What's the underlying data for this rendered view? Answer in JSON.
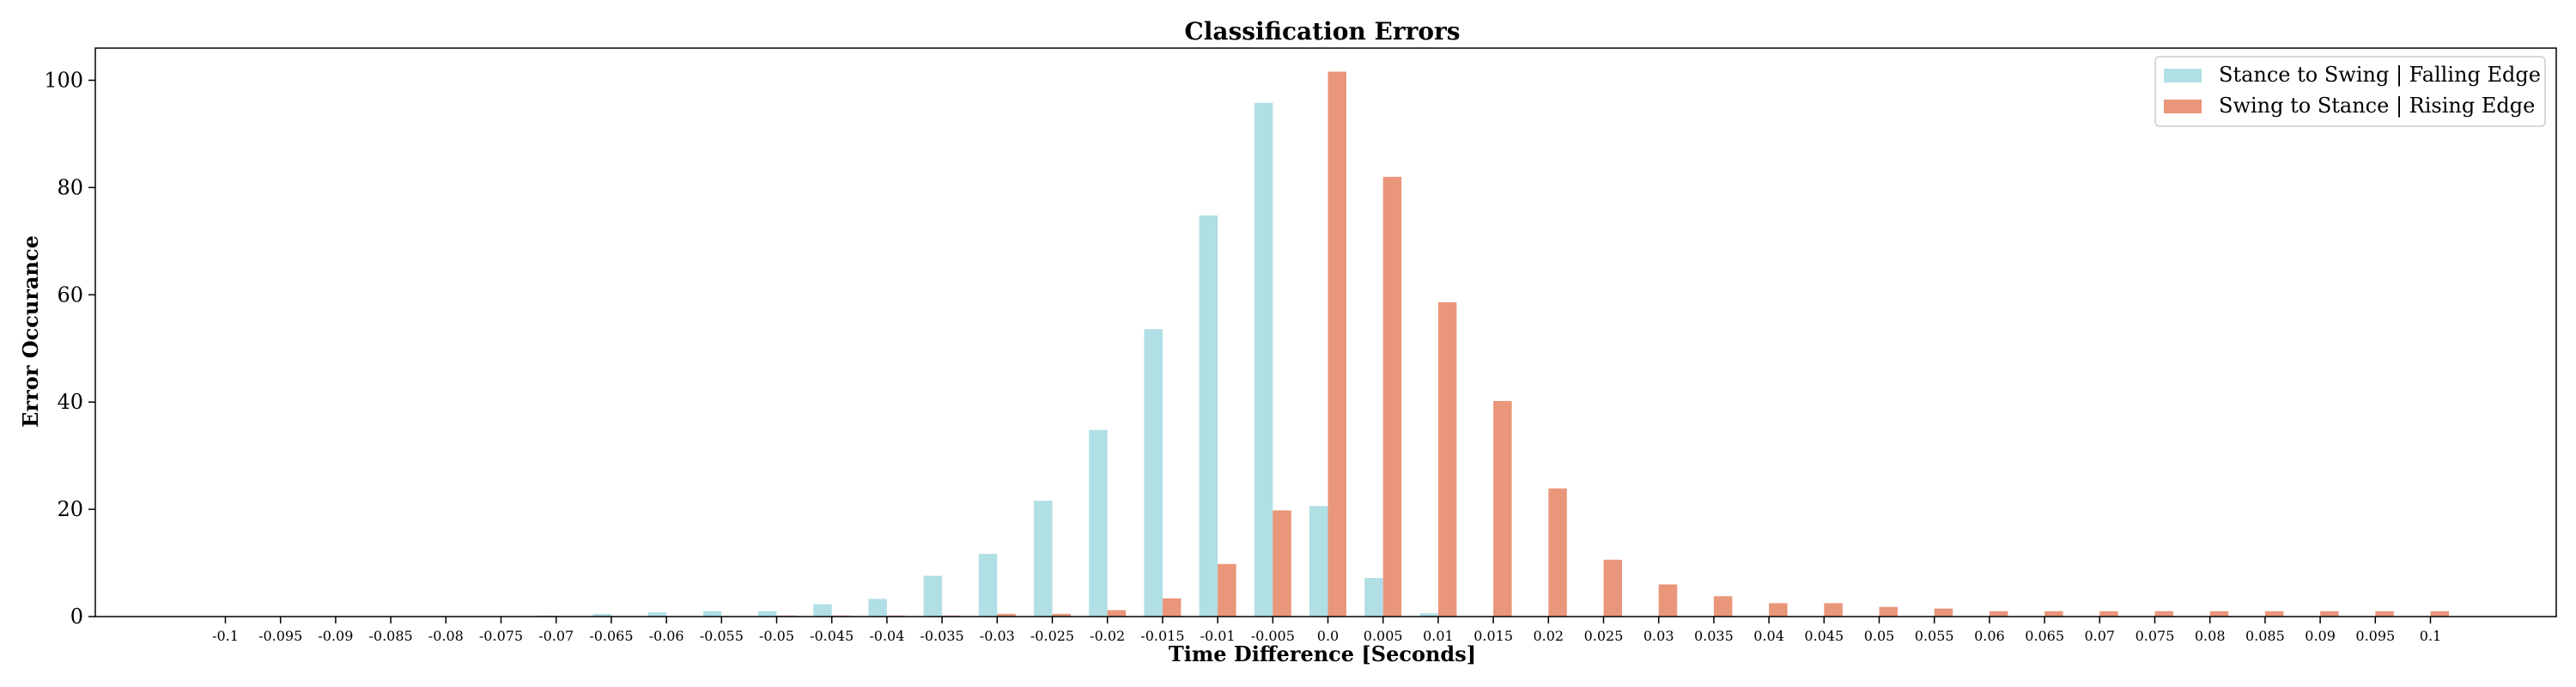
{
  "chart_data": {
    "type": "bar",
    "title": "Classification Errors",
    "xlabel": "Time Difference [Seconds]",
    "ylabel": "Error Occurance",
    "ylim": [
      0,
      106
    ],
    "yticks": [
      0,
      20,
      40,
      60,
      80,
      100
    ],
    "grid": false,
    "legend_position": "top-right",
    "categories": [
      "-0.1",
      "-0.095",
      "-0.09",
      "-0.085",
      "-0.08",
      "-0.075",
      "-0.07",
      "-0.065",
      "-0.06",
      "-0.055",
      "-0.05",
      "-0.045",
      "-0.04",
      "-0.035",
      "-0.03",
      "-0.025",
      "-0.02",
      "-0.015",
      "-0.01",
      "-0.005",
      "0.0",
      "0.005",
      "0.01",
      "0.015",
      "0.02",
      "0.025",
      "0.03",
      "0.035",
      "0.04",
      "0.045",
      "0.05",
      "0.055",
      "0.06",
      "0.065",
      "0.07",
      "0.075",
      "0.08",
      "0.085",
      "0.09",
      "0.095",
      "0.1"
    ],
    "series": [
      {
        "name": "Stance to Swing | Falling Edge",
        "color": "#b0dfe5",
        "values": [
          0,
          0,
          0,
          0,
          0,
          0,
          0.2,
          0.5,
          0.8,
          1.0,
          1.0,
          2.3,
          3.3,
          7.6,
          11.7,
          21.6,
          34.8,
          53.6,
          74.8,
          95.8,
          20.6,
          7.2,
          0.6,
          0,
          0,
          0,
          0,
          0,
          0,
          0,
          0,
          0,
          0,
          0,
          0,
          0,
          0,
          0,
          0,
          0,
          0
        ]
      },
      {
        "name": "Swing to Stance | Rising Edge",
        "color": "#e9967a",
        "values": [
          0,
          0,
          0,
          0,
          0,
          0,
          0,
          0,
          0,
          0,
          0.2,
          0.2,
          0.2,
          0.2,
          0.5,
          0.5,
          1.2,
          3.4,
          9.8,
          19.8,
          101.6,
          82.0,
          58.6,
          40.2,
          23.9,
          10.6,
          6.0,
          3.8,
          2.5,
          2.5,
          1.8,
          1.5,
          1.0,
          1.0,
          1.0,
          1.0,
          1.0,
          1.0,
          1.0,
          1.0,
          1.0
        ]
      }
    ]
  }
}
